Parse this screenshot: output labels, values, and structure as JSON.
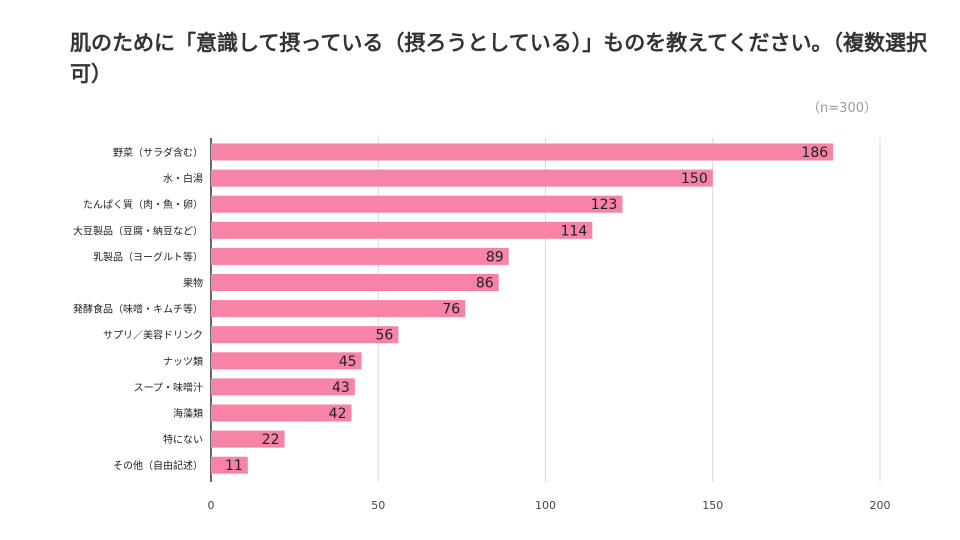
{
  "chart_data": {
    "type": "bar",
    "orientation": "horizontal",
    "title": "肌のために「意識して摂っている（摂ろうとしている）」ものを教えてください。（複数選択可）",
    "sample_note": "（n=300）",
    "categories": [
      "野菜（サラダ含む）",
      "水・白湯",
      "たんぱく質（肉・魚・卵）",
      "大豆製品（豆腐・納豆など）",
      "乳製品（ヨーグルト等）",
      "果物",
      "発酵食品（味噌・キムチ等）",
      "サプリ／美容ドリンク",
      "ナッツ類",
      "スープ・味噌汁",
      "海藻類",
      "特にない",
      "その他（自由記述）"
    ],
    "values": [
      186,
      150,
      123,
      114,
      89,
      86,
      76,
      56,
      45,
      43,
      42,
      22,
      11
    ],
    "xlim": [
      0,
      200
    ],
    "xticks": [
      0,
      50,
      100,
      150,
      200
    ],
    "grid": true,
    "bar_color": "#f783a6",
    "grid_color": "#d9d9d9",
    "axis_color": "#333333"
  }
}
